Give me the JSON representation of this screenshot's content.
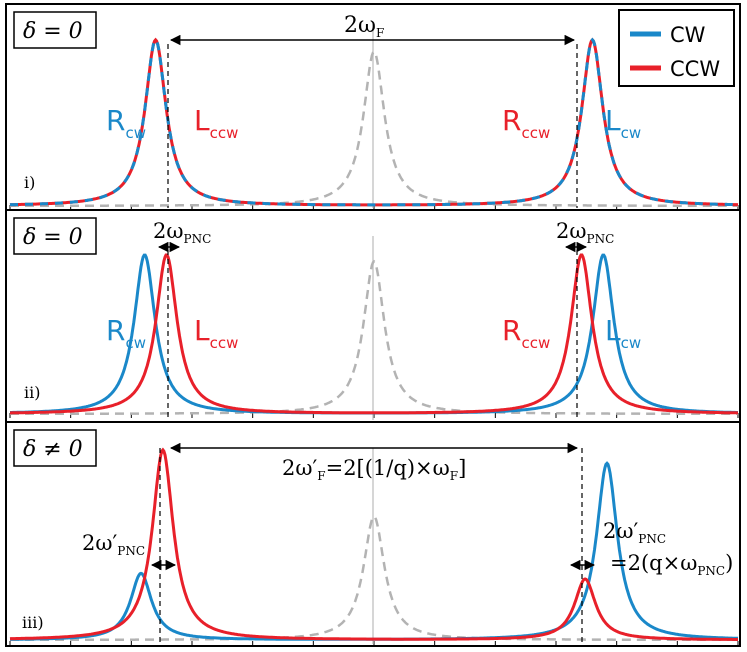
{
  "chart_data": {
    "type": "line",
    "x_range": [
      -1,
      1
    ],
    "y_range": [
      0,
      1
    ],
    "legend": {
      "placement": "top-right",
      "entries": [
        {
          "name": "CW",
          "color": "#1a88c9"
        },
        {
          "name": "CCW",
          "color": "#e8202a"
        }
      ]
    },
    "colors": {
      "cw": "#1a88c9",
      "ccw": "#e8202a",
      "reference": "#b3b3b3"
    },
    "panels": [
      {
        "id": "i",
        "roman_label": "i)",
        "delta_label": "δ = 0",
        "reference_peak": {
          "center": 0.0,
          "height": 0.93,
          "width": 0.035
        },
        "series": [
          {
            "name": "CW",
            "style": "dashed-blue",
            "peaks": [
              {
                "center": -0.6,
                "height": 1.0,
                "width": 0.035
              },
              {
                "center": 0.6,
                "height": 1.0,
                "width": 0.035
              }
            ]
          },
          {
            "name": "CCW",
            "style": "solid-red",
            "peaks": [
              {
                "center": -0.6,
                "height": 1.0,
                "width": 0.035
              },
              {
                "center": 0.6,
                "height": 1.0,
                "width": 0.035
              }
            ]
          }
        ],
        "peak_labels": [
          {
            "main": "R",
            "sub": "cw",
            "color": "cw",
            "x": -0.75
          },
          {
            "main": "L",
            "sub": "ccw",
            "color": "ccw",
            "x": -0.45
          },
          {
            "main": "R",
            "sub": "ccw",
            "color": "ccw",
            "x": 0.45
          },
          {
            "main": "L",
            "sub": "cw",
            "color": "cw",
            "x": 0.75
          }
        ],
        "annotations": [
          {
            "main": "2ω",
            "sub": "F",
            "suffix": ""
          }
        ]
      },
      {
        "id": "ii",
        "roman_label": "ii)",
        "delta_label": "δ = 0",
        "reference_peak": {
          "center": 0.0,
          "height": 0.93,
          "width": 0.035
        },
        "series": [
          {
            "name": "CW",
            "peaks": [
              {
                "center": -0.63,
                "height": 0.97,
                "width": 0.035
              },
              {
                "center": 0.63,
                "height": 0.97,
                "width": 0.035
              }
            ]
          },
          {
            "name": "CCW",
            "peaks": [
              {
                "center": -0.57,
                "height": 0.97,
                "width": 0.035
              },
              {
                "center": 0.57,
                "height": 0.97,
                "width": 0.035
              }
            ]
          }
        ],
        "peak_labels": [
          {
            "main": "R",
            "sub": "cw",
            "color": "cw",
            "x": -0.77
          },
          {
            "main": "L",
            "sub": "ccw",
            "color": "ccw",
            "x": -0.45
          },
          {
            "main": "R",
            "sub": "ccw",
            "color": "ccw",
            "x": 0.45
          },
          {
            "main": "L",
            "sub": "cw",
            "color": "cw",
            "x": 0.77
          }
        ],
        "annotations": [
          {
            "main": "2ω",
            "sub": "PNC",
            "suffix": ""
          },
          {
            "main": "2ω",
            "sub": "PNC",
            "suffix": ""
          }
        ]
      },
      {
        "id": "iii",
        "roman_label": "iii)",
        "delta_label": "δ ≠ 0",
        "reference_peak": {
          "center": 0.0,
          "height": 0.65,
          "width": 0.035
        },
        "series": [
          {
            "name": "CW",
            "peaks": [
              {
                "center": -0.64,
                "height": 0.35,
                "width": 0.035
              },
              {
                "center": 0.64,
                "height": 0.93,
                "width": 0.035
              }
            ]
          },
          {
            "name": "CCW",
            "peaks": [
              {
                "center": -0.58,
                "height": 1.0,
                "width": 0.035
              },
              {
                "center": 0.58,
                "height": 0.32,
                "width": 0.035
              }
            ]
          }
        ],
        "peak_labels": [],
        "annotations": [
          {
            "main": "2ω′",
            "sub": "F",
            "suffix": "=2[(1/q)×ω",
            "sub2": "F",
            "suffix2": "]"
          },
          {
            "main": "2ω′",
            "sub": "PNC",
            "suffix": ""
          },
          {
            "main": "2ω′",
            "sub": "PNC",
            "suffix": ""
          },
          {
            "main": "=2(q×ω",
            "sub": "PNC",
            "suffix": ")"
          }
        ]
      }
    ]
  }
}
